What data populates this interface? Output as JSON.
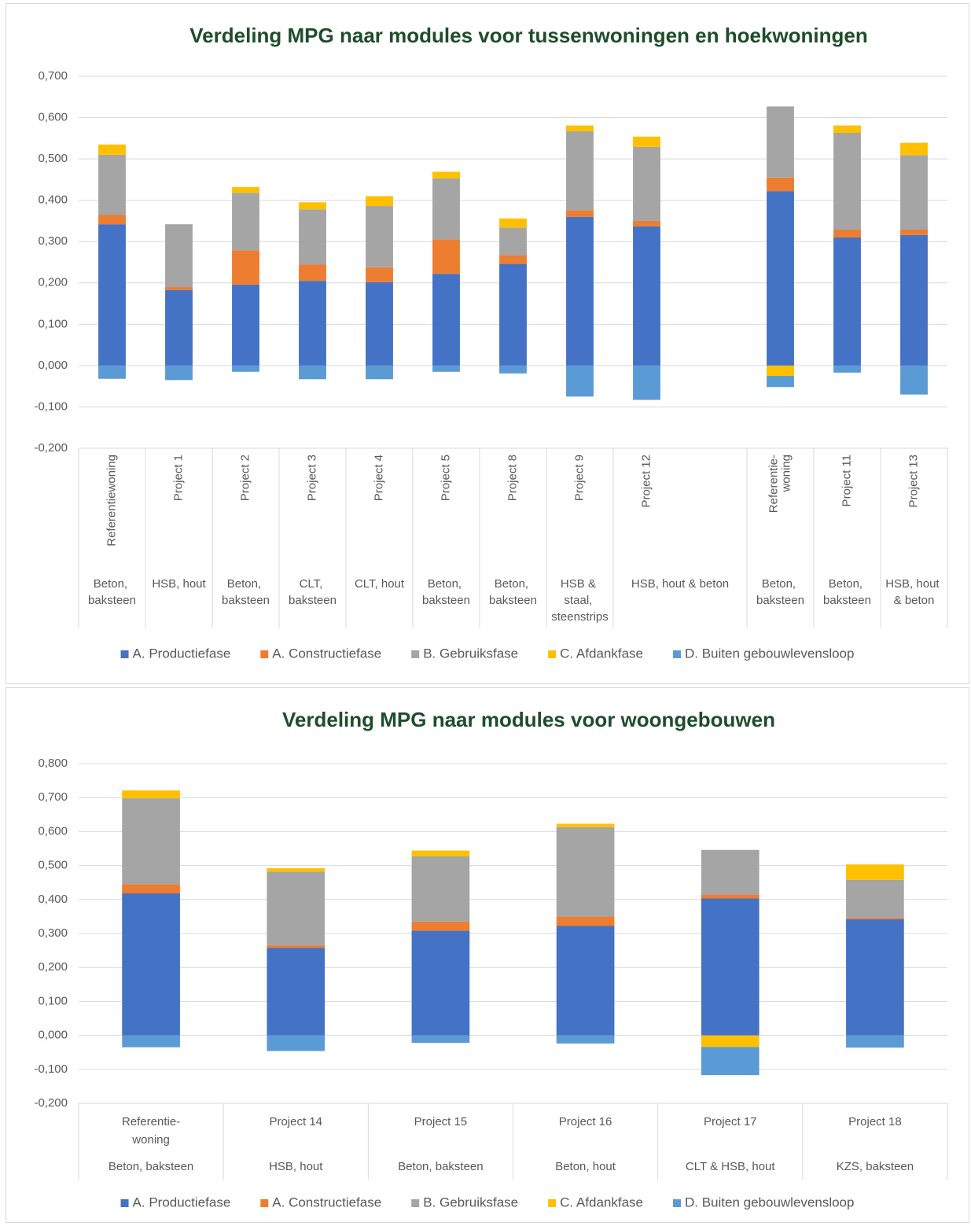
{
  "chart_data": [
    {
      "type": "bar",
      "stacked": true,
      "grid": true,
      "legend": "bottom",
      "title": "Verdeling MPG naar modules voor tussenwoningen en hoekwoningen",
      "categories": [
        "Referentiewoning",
        "Project 1",
        "Project 2",
        "Project 3",
        "Project 4",
        "Project 5",
        "Project 8",
        "Project 9",
        "Project 12",
        null,
        "Referentie-woning",
        "Project 11",
        "Project 13"
      ],
      "groups": [
        "Beton, baksteen",
        "HSB, hout",
        "Beton, baksteen",
        "CLT, baksteen",
        "CLT, hout",
        "Beton, baksteen",
        "Beton, baksteen",
        "HSB & staal, steenstrips",
        "HSB, hout & beton",
        null,
        "Beton, baksteen",
        "Beton, baksteen",
        "HSB, hout & beton"
      ],
      "series": [
        {
          "name": "A. Productiefase",
          "color": "#4472c4",
          "values": [
            0.342,
            0.183,
            0.196,
            0.205,
            0.202,
            0.222,
            0.246,
            0.36,
            0.337,
            null,
            0.422,
            0.31,
            0.316
          ]
        },
        {
          "name": "A. Constructiefase",
          "color": "#ed7d31",
          "values": [
            0.023,
            0.007,
            0.083,
            0.04,
            0.036,
            0.083,
            0.021,
            0.016,
            0.013,
            null,
            0.033,
            0.019,
            0.013
          ]
        },
        {
          "name": "B. Gebruiksfase",
          "color": "#a5a5a5",
          "values": [
            0.145,
            0.152,
            0.139,
            0.133,
            0.148,
            0.148,
            0.067,
            0.191,
            0.179,
            null,
            0.172,
            0.234,
            0.18
          ]
        },
        {
          "name": "C. Afdankfase",
          "color": "#ffc000",
          "values": [
            0.025,
            0,
            0.014,
            0.017,
            0.024,
            0.016,
            0.022,
            0.014,
            0.025,
            null,
            -0.025,
            0.018,
            0.03
          ]
        },
        {
          "name": "D. Buiten gebouwlevensloop",
          "color": "#5b9bd5",
          "values": [
            -0.032,
            -0.035,
            -0.015,
            -0.033,
            -0.033,
            -0.015,
            -0.019,
            -0.075,
            -0.083,
            null,
            -0.027,
            -0.017,
            -0.07
          ]
        }
      ],
      "ylim": [
        -0.2,
        0.7
      ],
      "yticks": [
        {
          "value": -0.2,
          "label": "-0,200"
        },
        {
          "value": -0.1,
          "label": "-0,100"
        },
        {
          "value": 0,
          "label": "0,000"
        },
        {
          "value": 0.1,
          "label": "0,100"
        },
        {
          "value": 0.2,
          "label": "0,200"
        },
        {
          "value": 0.3,
          "label": "0,300"
        },
        {
          "value": 0.4,
          "label": "0,400"
        },
        {
          "value": 0.5,
          "label": "0,500"
        },
        {
          "value": 0.6,
          "label": "0,600"
        },
        {
          "value": 0.7,
          "label": "0,700"
        }
      ]
    },
    {
      "type": "bar",
      "stacked": true,
      "grid": true,
      "legend": "bottom",
      "title": "Verdeling MPG naar modules voor woongebouwen",
      "categories": [
        "Referentie-woning",
        "Project 14",
        "Project 15",
        "Project 16",
        "Project 17",
        "Project 18"
      ],
      "groups": [
        "Beton, baksteen",
        "HSB, hout",
        "Beton, baksteen",
        "Beton, hout",
        "CLT & HSB, hout",
        "KZS, baksteen"
      ],
      "series": [
        {
          "name": "A. Productiefase",
          "color": "#4472c4",
          "values": [
            0.418,
            0.258,
            0.308,
            0.322,
            0.403,
            0.342
          ]
        },
        {
          "name": "A. Constructiefase",
          "color": "#ed7d31",
          "values": [
            0.027,
            0.007,
            0.027,
            0.028,
            0.012,
            0.005
          ]
        },
        {
          "name": "B. Gebruiksfase",
          "color": "#a5a5a5",
          "values": [
            0.253,
            0.217,
            0.192,
            0.263,
            0.131,
            0.111
          ]
        },
        {
          "name": "C. Afdankfase",
          "color": "#ffc000",
          "values": [
            0.023,
            0.01,
            0.017,
            0.01,
            -0.034,
            0.045
          ]
        },
        {
          "name": "D. Buiten gebouwlevensloop",
          "color": "#5b9bd5",
          "values": [
            -0.035,
            -0.046,
            -0.022,
            -0.024,
            -0.083,
            -0.036
          ]
        }
      ],
      "ylim": [
        -0.2,
        0.8
      ],
      "yticks": [
        {
          "value": -0.2,
          "label": "-0,200"
        },
        {
          "value": -0.1,
          "label": "-0,100"
        },
        {
          "value": 0,
          "label": "0,000"
        },
        {
          "value": 0.1,
          "label": "0,100"
        },
        {
          "value": 0.2,
          "label": "0,200"
        },
        {
          "value": 0.3,
          "label": "0,300"
        },
        {
          "value": 0.4,
          "label": "0,400"
        },
        {
          "value": 0.5,
          "label": "0,500"
        },
        {
          "value": 0.6,
          "label": "0,600"
        },
        {
          "value": 0.7,
          "label": "0,700"
        },
        {
          "value": 0.8,
          "label": "0,800"
        }
      ]
    }
  ]
}
